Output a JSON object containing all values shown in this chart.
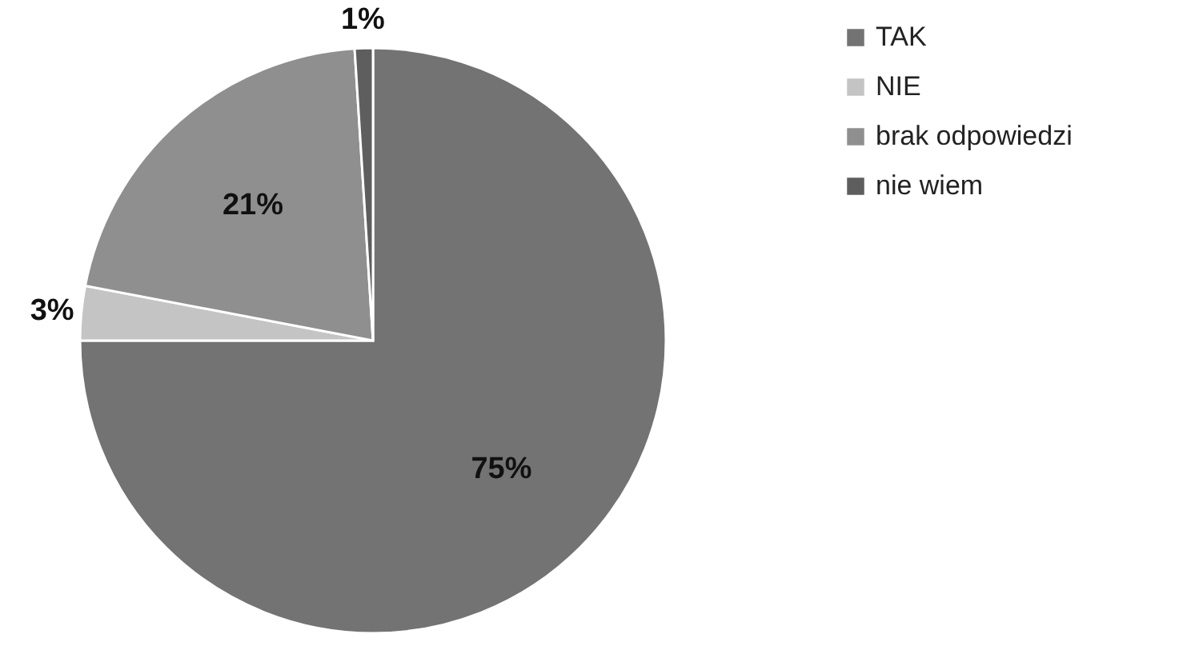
{
  "chart_data": {
    "type": "pie",
    "categories": [
      "TAK",
      "NIE",
      "brak odpowiedzi",
      "nie wiem"
    ],
    "values": [
      75,
      3,
      21,
      1
    ],
    "colors": [
      "#737373",
      "#c4c4c4",
      "#8f8f8f",
      "#5e5e5e"
    ],
    "value_labels": [
      "75%",
      "3%",
      "21%",
      "1%"
    ],
    "legend": "right"
  }
}
